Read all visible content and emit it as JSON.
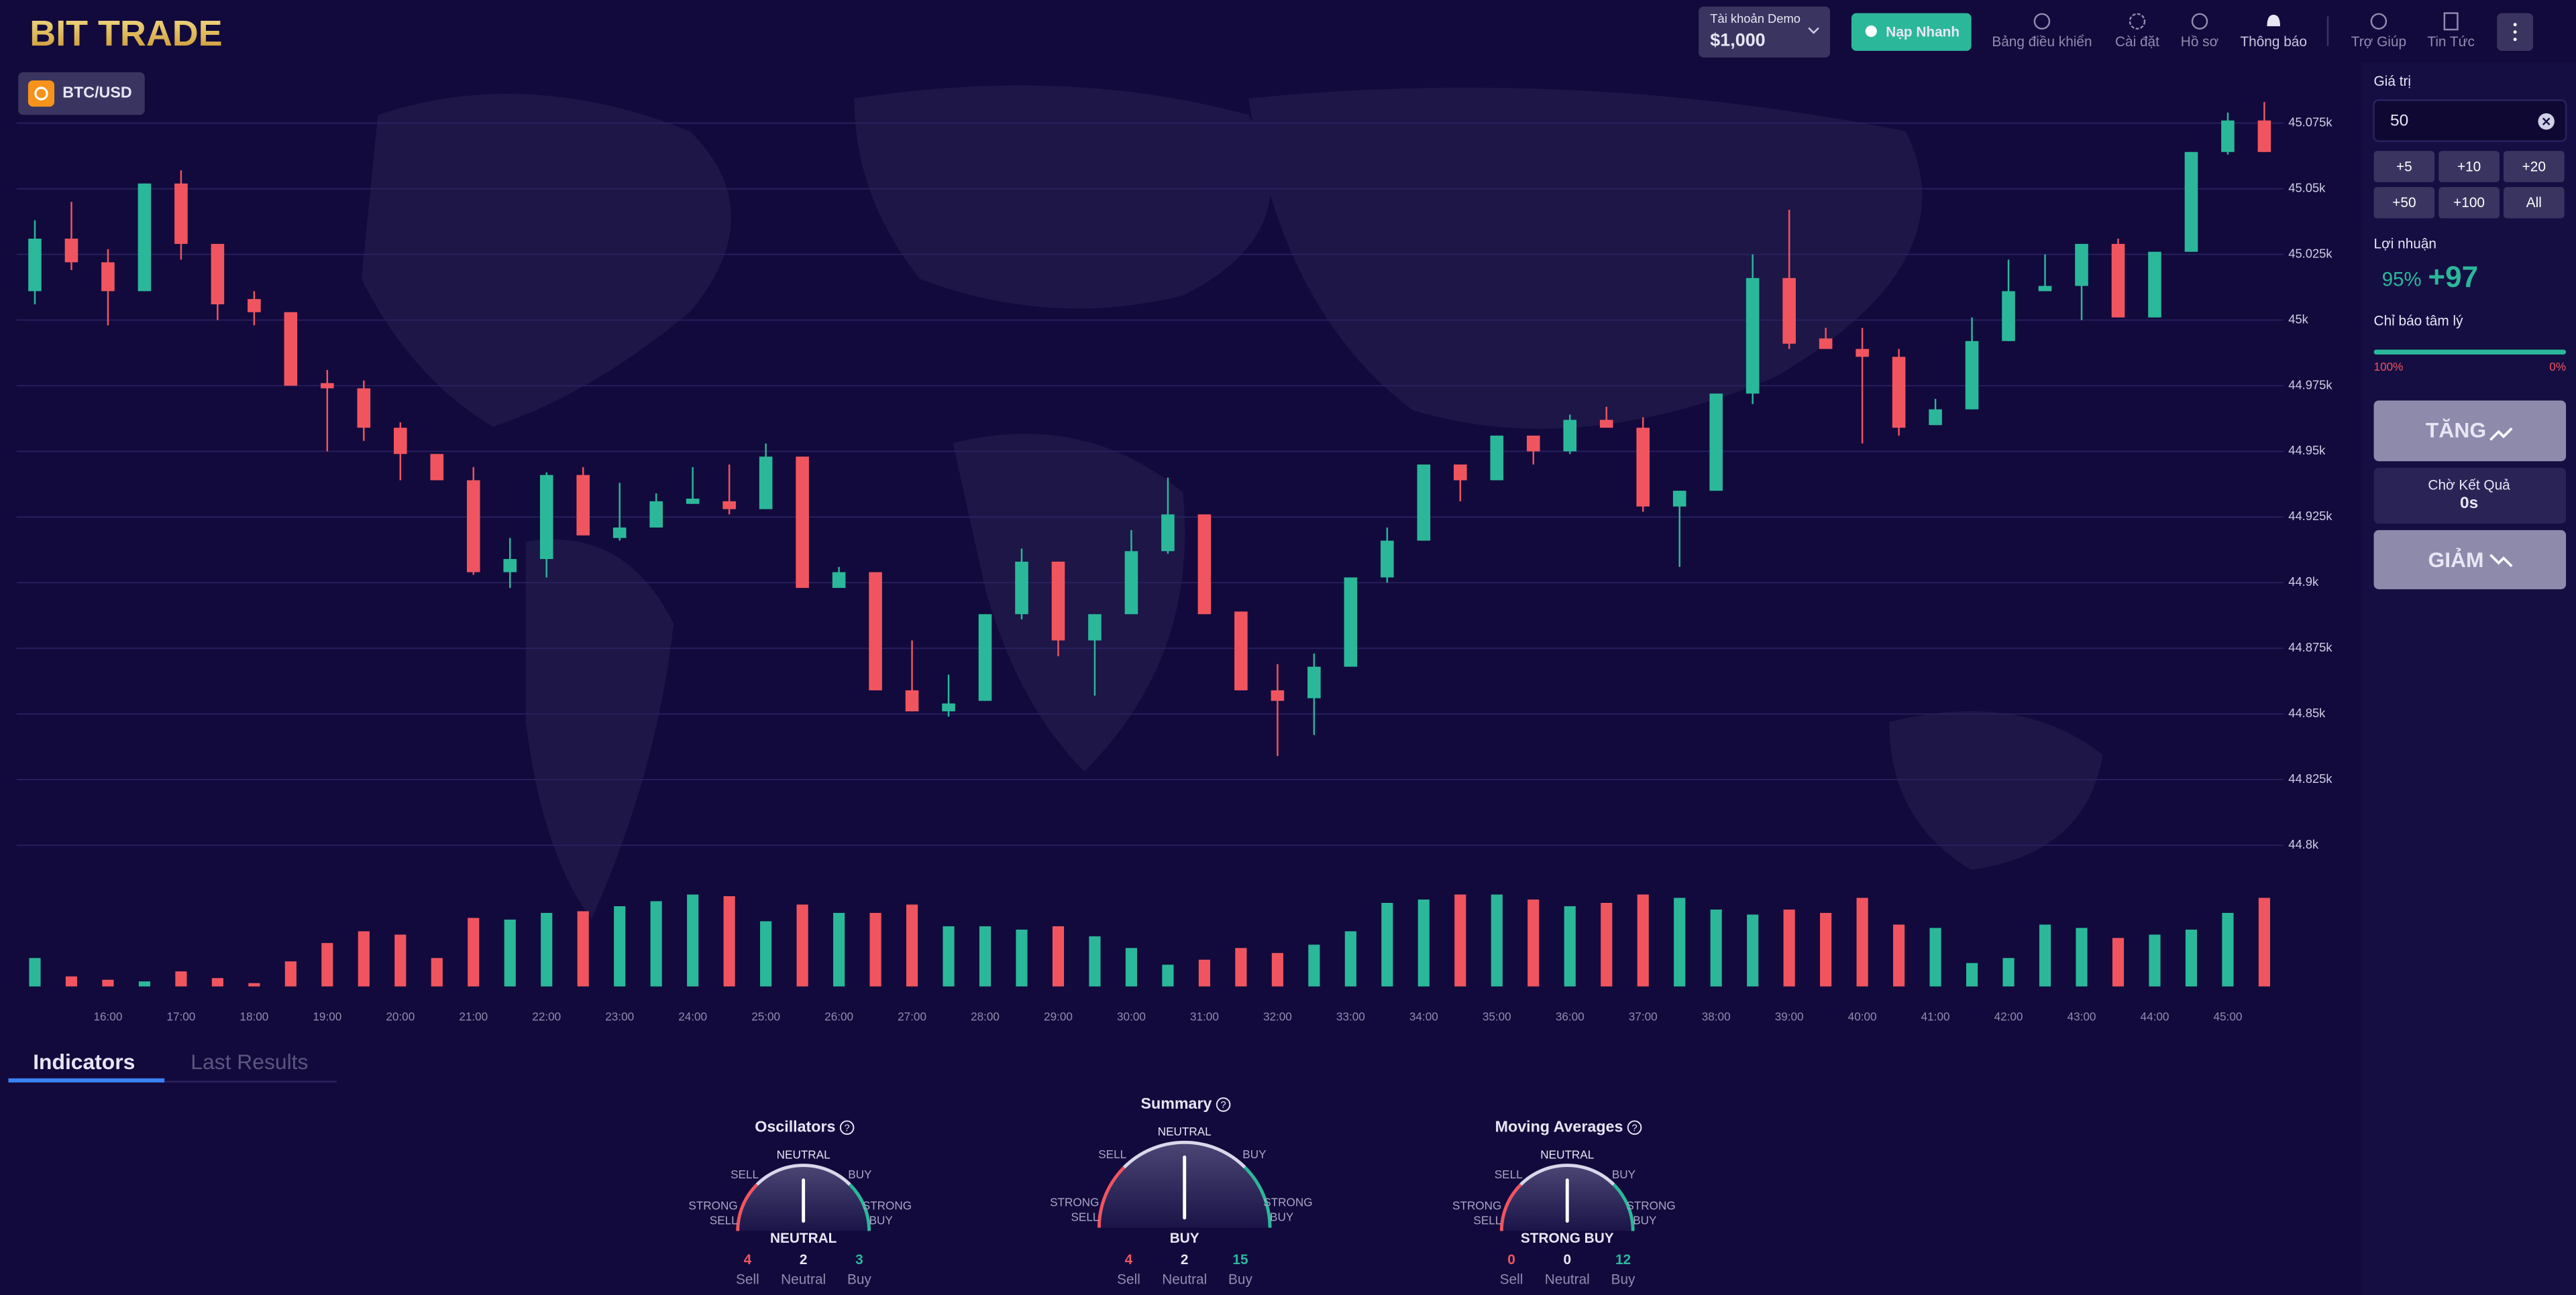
{
  "header": {
    "logo": "BIT TRADE",
    "account_label": "Tài khoản Demo",
    "balance": "$1,000",
    "deposit": "Nạp Nhanh",
    "nav": [
      "Bảng điều khiển",
      "Cài đặt",
      "Hồ sơ",
      "Thông báo",
      "Trợ Giúp",
      "Tin Tức"
    ]
  },
  "chart_data": {
    "type": "candlestick",
    "symbol": "BTC/USD",
    "categories": [
      null,
      null,
      "16:00",
      null,
      "17:00",
      null,
      "18:00",
      null,
      "19:00",
      null,
      "20:00",
      null,
      "21:00",
      null,
      "22:00",
      null,
      "23:00",
      null,
      "24:00",
      null,
      "25:00",
      null,
      "26:00",
      null,
      "27:00",
      null,
      "28:00",
      null,
      "29:00",
      null,
      "30:00",
      null,
      "31:00",
      null,
      "32:00",
      null,
      "33:00",
      null,
      "34:00",
      null,
      "35:00",
      null,
      "36:00",
      null,
      "37:00",
      null,
      "38:00",
      null,
      "39:00",
      null,
      "40:00",
      null,
      "41:00",
      null,
      "42:00",
      null,
      "43:00",
      null,
      "44:00",
      null,
      "45:00",
      null
    ],
    "open": [
      45011,
      45031,
      45022,
      45011,
      45052,
      45029,
      45008,
      45003,
      44976,
      44974,
      44959,
      44949,
      44939,
      44904,
      44909,
      44941,
      44917,
      44921,
      44930,
      44931,
      44928,
      44948,
      44898,
      44904,
      44859,
      44851,
      44855,
      44888,
      44908,
      44878,
      44888,
      44912,
      44926,
      44889,
      44859,
      44856,
      44868,
      44902,
      44916,
      44945,
      44939,
      44956,
      44950,
      44962,
      44959,
      44929,
      44935,
      44972,
      45016,
      44993,
      44989,
      44986,
      44960,
      44966,
      44992,
      45011,
      45013,
      45029,
      45001,
      45026,
      45064,
      45076
    ],
    "high": [
      45038,
      45045,
      45027,
      45052,
      45057,
      45029,
      45011,
      45003,
      44981,
      44977,
      44961,
      44949,
      44944,
      44917,
      44942,
      44944,
      44938,
      44934,
      44944,
      44945,
      44953,
      44948,
      44906,
      44904,
      44878,
      44865,
      44888,
      44913,
      44908,
      44888,
      44920,
      44940,
      44926,
      44889,
      44869,
      44873,
      44902,
      44921,
      44945,
      44945,
      44956,
      44956,
      44964,
      44967,
      44963,
      44935,
      44972,
      45025,
      45042,
      44997,
      44997,
      44989,
      44970,
      45001,
      45023,
      45025,
      45029,
      45031,
      45026,
      45064,
      45079,
      45083
    ],
    "low": [
      45006,
      45019,
      44998,
      45011,
      45023,
      45000,
      44998,
      44975,
      44950,
      44954,
      44939,
      44939,
      44903,
      44898,
      44902,
      44918,
      44916,
      44921,
      44930,
      44926,
      44928,
      44898,
      44898,
      44859,
      44851,
      44849,
      44855,
      44886,
      44872,
      44857,
      44888,
      44911,
      44888,
      44859,
      44834,
      44842,
      44868,
      44900,
      44916,
      44931,
      44939,
      44945,
      44949,
      44959,
      44927,
      44906,
      44935,
      44968,
      44989,
      44989,
      44953,
      44956,
      44960,
      44966,
      44992,
      45011,
      45000,
      45001,
      45001,
      45026,
      45063,
      45064
    ],
    "close": [
      45031,
      45022,
      45011,
      45052,
      45029,
      45006,
      45003,
      44975,
      44974,
      44959,
      44949,
      44939,
      44904,
      44909,
      44941,
      44918,
      44921,
      44931,
      44932,
      44928,
      44948,
      44898,
      44904,
      44859,
      44851,
      44854,
      44888,
      44908,
      44878,
      44888,
      44912,
      44926,
      44888,
      44859,
      44855,
      44868,
      44902,
      44916,
      44945,
      44939,
      44956,
      44950,
      44962,
      44959,
      44929,
      44935,
      44972,
      45016,
      44991,
      44989,
      44986,
      44959,
      44966,
      44992,
      45011,
      45013,
      45029,
      45001,
      45026,
      45064,
      45076,
      45064
    ],
    "volume": [
      17,
      6,
      4,
      3,
      9,
      5,
      2,
      15,
      26,
      33,
      31,
      17,
      41,
      40,
      44,
      45,
      48,
      51,
      55,
      54,
      39,
      49,
      44,
      44,
      49,
      36,
      36,
      34,
      36,
      30,
      23,
      13,
      16,
      23,
      20,
      25,
      33,
      50,
      52,
      55,
      55,
      52,
      48,
      50,
      55,
      53,
      46,
      43,
      46,
      44,
      53,
      37,
      35,
      14,
      17,
      37,
      35,
      29,
      31,
      34,
      44,
      53
    ],
    "up_color": "#2bb89a",
    "down_color": "#f0555f",
    "ylim": [
      44790,
      45100
    ],
    "yticks": [
      {
        "value": 45075,
        "label": "45.075k"
      },
      {
        "value": 45050,
        "label": "45.05k"
      },
      {
        "value": 45025,
        "label": "45.025k"
      },
      {
        "value": 45000,
        "label": "45k"
      },
      {
        "value": 44975,
        "label": "44.975k"
      },
      {
        "value": 44950,
        "label": "44.95k"
      },
      {
        "value": 44925,
        "label": "44.925k"
      },
      {
        "value": 44900,
        "label": "44.9k"
      },
      {
        "value": 44875,
        "label": "44.875k"
      },
      {
        "value": 44850,
        "label": "44.85k"
      },
      {
        "value": 44825,
        "label": "44.825k"
      },
      {
        "value": 44800,
        "label": "44.8k"
      }
    ],
    "grid": true
  },
  "tabs": [
    "Indicators",
    "Last Results"
  ],
  "indicators": [
    {
      "title": "Oscillators",
      "verdict": "NEUTRAL",
      "counts": [
        4,
        2,
        3
      ]
    },
    {
      "title": "Summary",
      "verdict": "BUY",
      "counts": [
        4,
        2,
        15
      ]
    },
    {
      "title": "Moving Averages",
      "verdict": "STRONG BUY",
      "counts": [
        0,
        0,
        12
      ]
    }
  ],
  "gauge_labels": {
    "neutral": "NEUTRAL",
    "sell": "SELL",
    "buy": "BUY",
    "strong_sell": [
      "STRONG",
      "SELL"
    ],
    "strong_buy": [
      "STRONG",
      "BUY"
    ],
    "help": "?"
  },
  "count_labels": [
    "Sell",
    "Neutral",
    "Buy"
  ],
  "trade_panel": {
    "amount_label": "Giá trị",
    "amount": "50",
    "quick_amounts": [
      "+5",
      "+10",
      "+20",
      "+50",
      "+100",
      "All"
    ],
    "profit_label": "Lợi nhuận",
    "profit_rate": "95%",
    "profit": "+97",
    "sentiment_label": "Chỉ báo tâm lý",
    "sentiment_left": "100%",
    "sentiment_right": "0%",
    "up": "TĂNG",
    "waiting": "Chờ Kết Quả",
    "timer": "0s",
    "down": "GIẢM"
  }
}
